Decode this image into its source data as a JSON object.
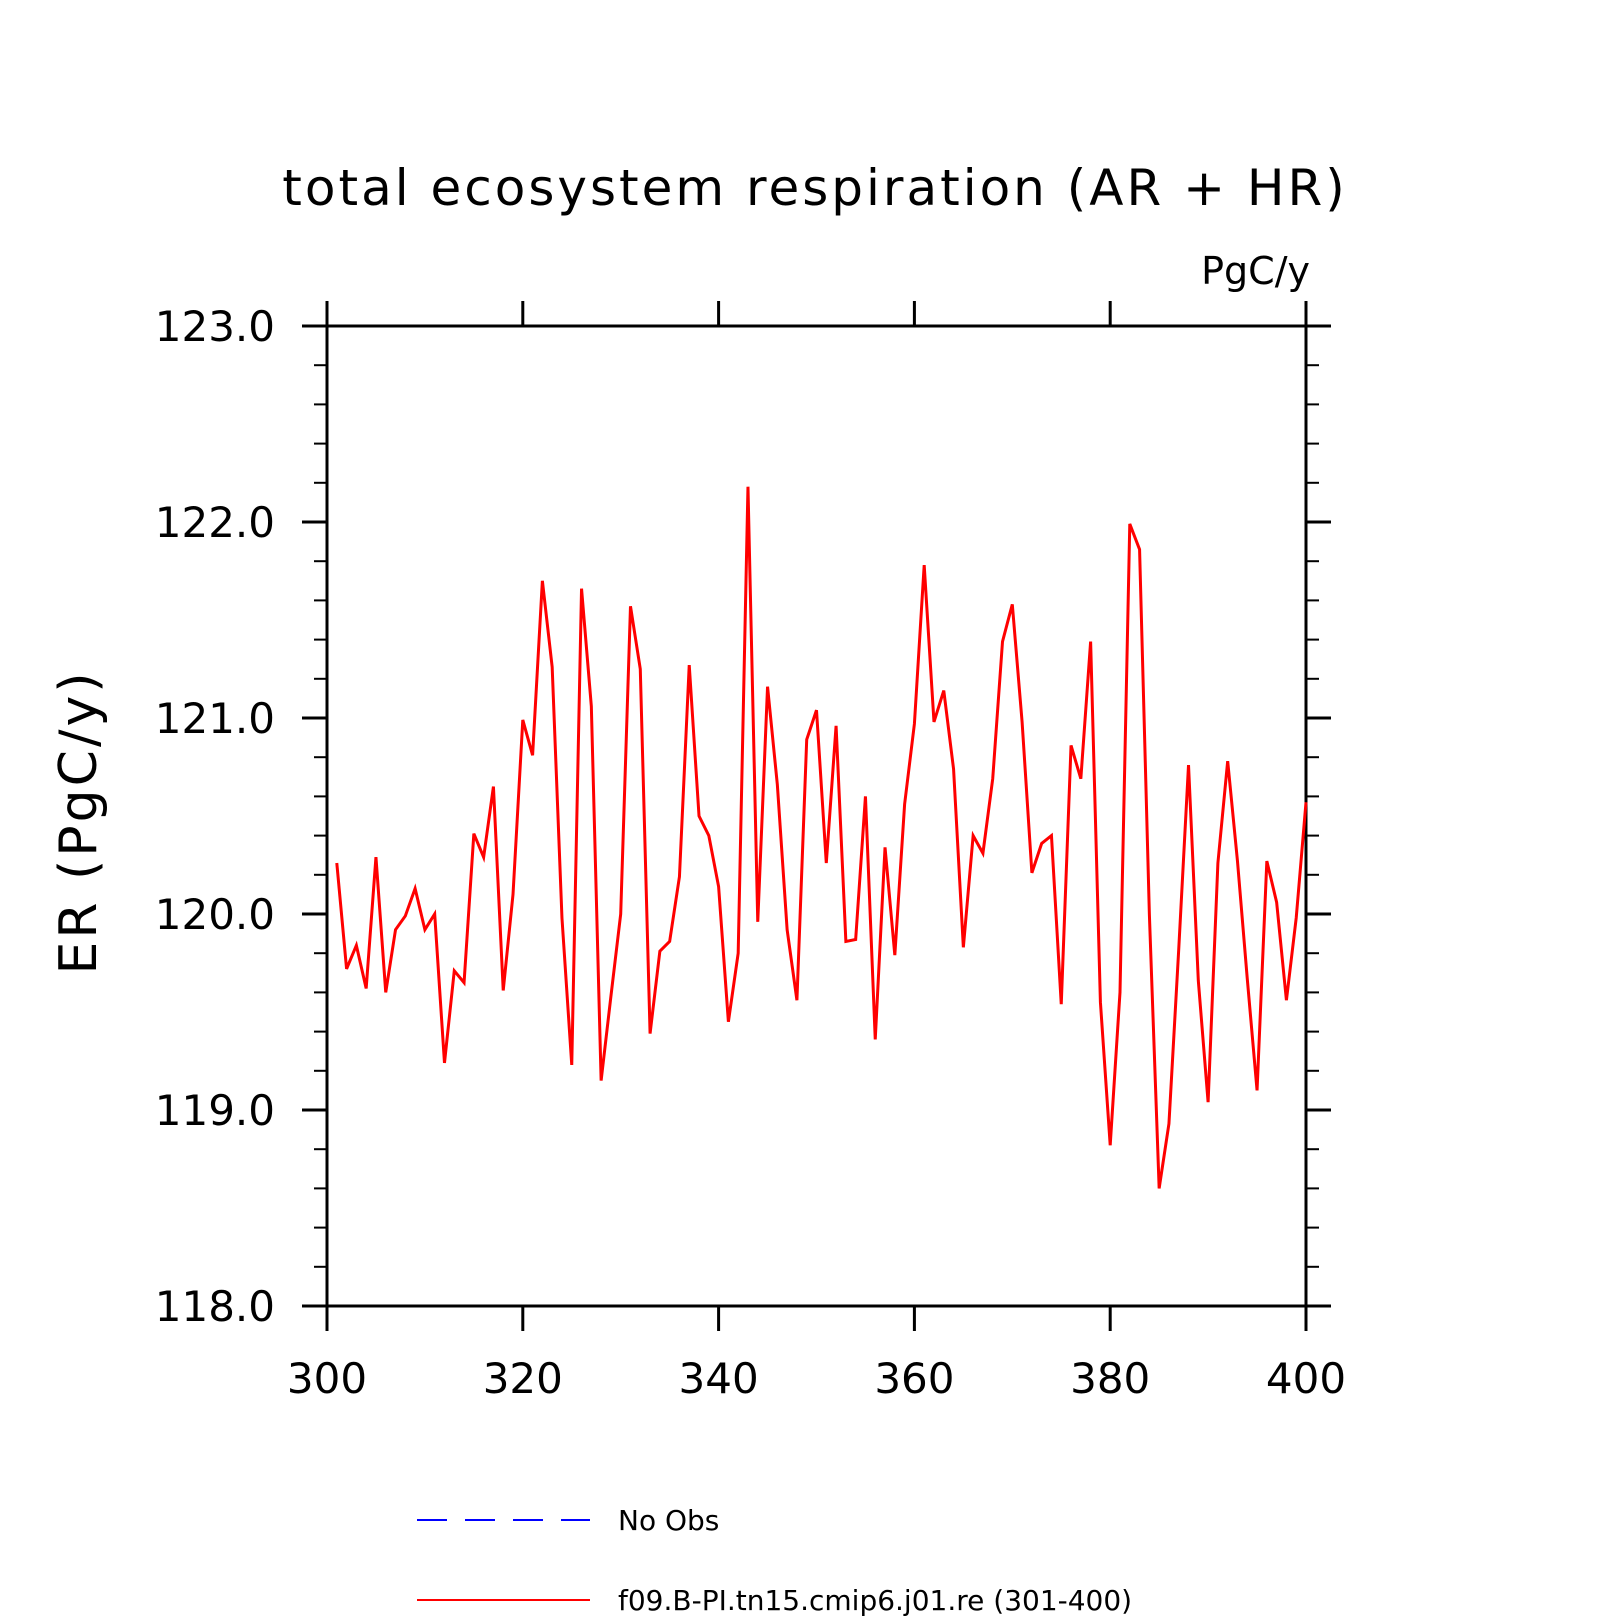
{
  "chart_data": {
    "type": "line",
    "title": "total ecosystem respiration (AR + HR)",
    "units_label": "PgC/y",
    "ylabel": "ER  (PgC/y)",
    "xlabel": "",
    "xlim": [
      300,
      400
    ],
    "ylim": [
      118.0,
      123.0
    ],
    "x_ticks": [
      "300",
      "320",
      "340",
      "360",
      "380",
      "400"
    ],
    "y_ticks": [
      "118.0",
      "119.0",
      "120.0",
      "121.0",
      "122.0",
      "123.0"
    ],
    "grid": false,
    "legend_position": "bottom",
    "series": [
      {
        "name": "No Obs",
        "color": "#0000ff",
        "style": "dashed",
        "x": [],
        "values": []
      },
      {
        "name": "f09.B-PI.tn15.cmip6.j01.re (301-400)",
        "color": "#ff0000",
        "style": "solid",
        "x": [
          301,
          302,
          303,
          304,
          305,
          306,
          307,
          308,
          309,
          310,
          311,
          312,
          313,
          314,
          315,
          316,
          317,
          318,
          319,
          320,
          321,
          322,
          323,
          324,
          325,
          326,
          327,
          328,
          329,
          330,
          331,
          332,
          333,
          334,
          335,
          336,
          337,
          338,
          339,
          340,
          341,
          342,
          343,
          344,
          345,
          346,
          347,
          348,
          349,
          350,
          351,
          352,
          353,
          354,
          355,
          356,
          357,
          358,
          359,
          360,
          361,
          362,
          363,
          364,
          365,
          366,
          367,
          368,
          369,
          370,
          371,
          372,
          373,
          374,
          375,
          376,
          377,
          378,
          379,
          380,
          381,
          382,
          383,
          384,
          385,
          386,
          387,
          388,
          389,
          390,
          391,
          392,
          393,
          394,
          395,
          396,
          397,
          398,
          399,
          400
        ],
        "values": [
          120.26,
          119.72,
          119.84,
          119.62,
          120.29,
          119.6,
          119.92,
          119.99,
          120.13,
          119.92,
          120.0,
          119.24,
          119.71,
          119.65,
          120.41,
          120.29,
          120.65,
          119.61,
          120.1,
          120.99,
          120.81,
          121.7,
          121.26,
          119.98,
          119.23,
          121.66,
          121.06,
          119.15,
          119.58,
          120.0,
          121.57,
          121.25,
          119.39,
          119.81,
          119.86,
          120.19,
          121.27,
          120.5,
          120.4,
          120.14,
          119.45,
          119.8,
          122.18,
          119.96,
          121.16,
          120.66,
          119.92,
          119.56,
          120.89,
          121.04,
          120.26,
          120.96,
          119.86,
          119.87,
          120.6,
          119.36,
          120.34,
          119.79,
          120.56,
          120.97,
          121.78,
          120.98,
          121.14,
          120.74,
          119.83,
          120.4,
          120.31,
          120.69,
          121.39,
          121.58,
          120.98,
          120.21,
          120.36,
          120.4,
          119.54,
          120.86,
          120.69,
          121.39,
          119.55,
          118.82,
          119.6,
          121.99,
          121.86,
          120.0,
          118.6,
          118.93,
          119.82,
          120.76,
          119.66,
          119.04,
          120.26,
          120.78,
          120.27,
          119.67,
          119.1,
          120.27,
          120.06,
          119.56,
          119.98,
          120.57
        ]
      }
    ]
  }
}
